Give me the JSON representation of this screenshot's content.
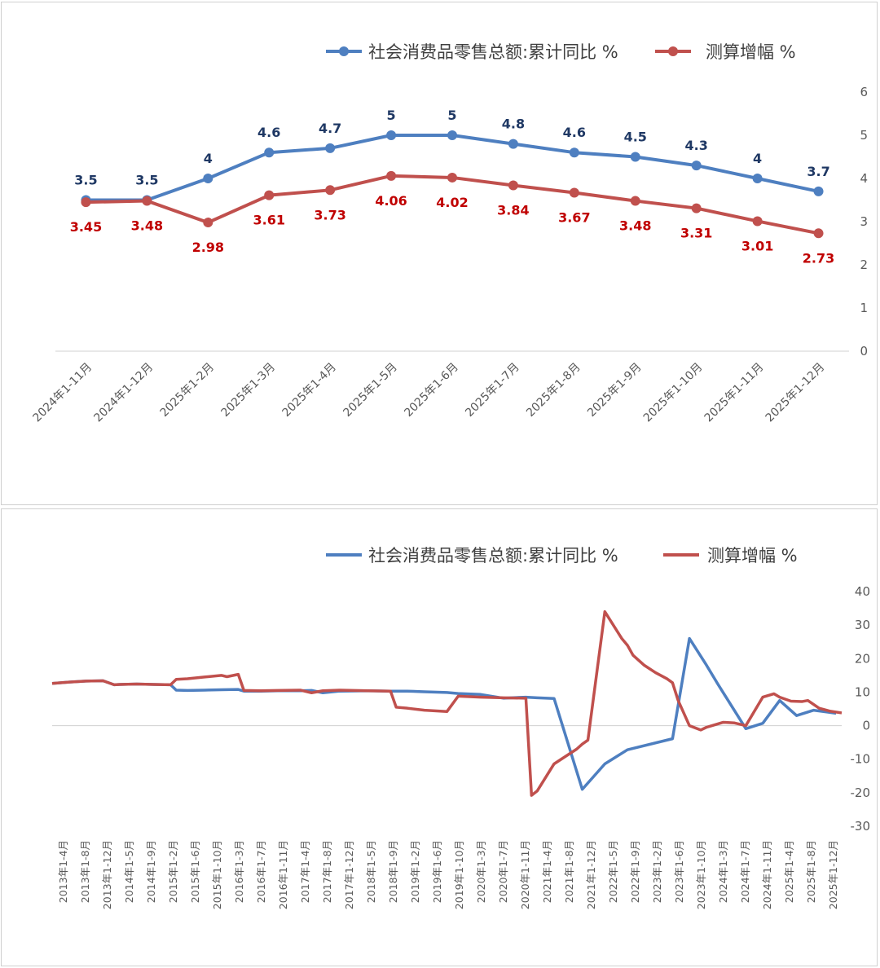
{
  "colors": {
    "blue": "#4e7fc0",
    "red": "#c0504d",
    "blue_label": "#1f3864",
    "red_label": "#c00000"
  },
  "legend": {
    "series1": "社会消费品零售总额:累计同比 %",
    "series2": "测算增幅 %"
  },
  "chart_data": [
    {
      "type": "line",
      "categories": [
        "2024年1-11月",
        "2024年1-12月",
        "2025年1-2月",
        "2025年1-3月",
        "2025年1-4月",
        "2025年1-5月",
        "2025年1-6月",
        "2025年1-7月",
        "2025年1-8月",
        "2025年1-9月",
        "2025年1-10月",
        "2025年1-11月",
        "2025年1-12月"
      ],
      "series": [
        {
          "name": "社会消费品零售总额:累计同比 %",
          "values": [
            3.5,
            3.5,
            4,
            4.6,
            4.7,
            5,
            5,
            4.8,
            4.6,
            4.5,
            4.3,
            4,
            3.7
          ],
          "labels": [
            "3.5",
            "3.5",
            "4",
            "4.6",
            "4.7",
            "5",
            "5",
            "4.8",
            "4.6",
            "4.5",
            "4.3",
            "4",
            "3.7"
          ]
        },
        {
          "name": "测算增幅 %",
          "values": [
            3.45,
            3.48,
            2.98,
            3.61,
            3.73,
            4.06,
            4.02,
            3.84,
            3.67,
            3.48,
            3.31,
            3.01,
            2.73
          ],
          "labels": [
            "3.45",
            "3.48",
            "2.98",
            "3.61",
            "3.73",
            "4.06",
            "4.02",
            "3.84",
            "3.67",
            "3.48",
            "3.31",
            "3.01",
            "2.73"
          ]
        }
      ],
      "ylim": [
        0,
        6
      ],
      "yticks": [
        "0",
        "1",
        "2",
        "3",
        "4",
        "5",
        "6"
      ],
      "legend_position": "top-right",
      "markers": true
    },
    {
      "type": "line",
      "x_tick_labels": [
        "2013年1-4月",
        "2013年1-8月",
        "2013年1-12月",
        "2014年1-5月",
        "2014年1-9月",
        "2015年1-2月",
        "2015年1-6月",
        "2015年1-10月",
        "2016年1-3月",
        "2016年1-7月",
        "2016年1-11月",
        "2017年1-4月",
        "2017年1-8月",
        "2017年1-12月",
        "2018年1-5月",
        "2018年1-9月",
        "2019年1-2月",
        "2019年1-6月",
        "2019年1-10月",
        "2020年1-3月",
        "2020年1-7月",
        "2020年1-11月",
        "2021年1-4月",
        "2021年1-8月",
        "2021年1-12月",
        "2022年1-5月",
        "2022年1-9月",
        "2023年1-2月",
        "2023年1-6月",
        "2023年1-10月",
        "2024年1-3月",
        "2024年1-7月",
        "2024年1-11月",
        "2025年1-4月",
        "2025年1-8月",
        "2025年1-12月"
      ],
      "x_range": [
        0,
        140
      ],
      "series": [
        {
          "name": "社会消费品零售总额:累计同比 %",
          "x": [
            0,
            3,
            6,
            9,
            11,
            12,
            15,
            18,
            21,
            22,
            24,
            27,
            30,
            33,
            34,
            37,
            40,
            44,
            46,
            48,
            51,
            56,
            60,
            63,
            66,
            70,
            72,
            76,
            80,
            84,
            86,
            89,
            94,
            98,
            102,
            110,
            113,
            116,
            118,
            123,
            126,
            129,
            132,
            135,
            139
          ],
          "y": [
            12.6,
            13.0,
            13.3,
            13.4,
            12.2,
            12.3,
            12.4,
            12.3,
            12.2,
            10.6,
            10.5,
            10.6,
            10.7,
            10.8,
            10.3,
            10.3,
            10.4,
            10.4,
            10.5,
            9.8,
            10.3,
            10.4,
            10.3,
            10.3,
            10.1,
            9.9,
            9.6,
            9.3,
            8.2,
            8.5,
            8.3,
            8.1,
            -19.0,
            -11.4,
            -7.2,
            -3.9,
            26.0,
            18.1,
            12.5,
            -0.9,
            0.7,
            7.5,
            3.0,
            4.6,
            3.7
          ]
        },
        {
          "name": "测算增幅 %",
          "x": [
            0,
            3,
            6,
            9,
            11,
            12,
            15,
            18,
            21,
            22,
            24,
            27,
            30,
            31,
            33,
            34,
            37,
            40,
            44,
            46,
            48,
            51,
            56,
            60,
            61,
            63,
            66,
            70,
            72,
            76,
            80,
            84,
            85,
            86,
            89,
            93,
            94,
            95,
            98,
            101,
            102,
            103,
            105,
            107,
            109,
            110,
            111,
            113,
            115,
            116,
            117,
            119,
            121,
            123,
            126,
            128,
            129,
            131,
            133,
            134,
            136,
            138,
            140
          ],
          "y": [
            12.6,
            13.0,
            13.3,
            13.4,
            12.2,
            12.3,
            12.4,
            12.3,
            12.2,
            13.8,
            14.0,
            14.5,
            15.0,
            14.6,
            15.3,
            10.5,
            10.4,
            10.5,
            10.6,
            9.8,
            10.4,
            10.6,
            10.4,
            10.3,
            5.5,
            5.2,
            4.6,
            4.2,
            8.8,
            8.5,
            8.3,
            8.2,
            -20.8,
            -19.5,
            -11.4,
            -7.0,
            -5.5,
            -4.3,
            34.0,
            26.0,
            24.0,
            21.0,
            18.0,
            15.8,
            14.0,
            12.8,
            7.5,
            0.0,
            -1.3,
            -0.5,
            0.0,
            1.0,
            0.8,
            0.0,
            8.5,
            9.5,
            8.5,
            7.3,
            7.2,
            7.5,
            5.2,
            4.3,
            3.8
          ]
        }
      ],
      "ylim": [
        -30,
        40
      ],
      "yticks": [
        "-30",
        "-20",
        "-10",
        "0",
        "10",
        "20",
        "30",
        "40"
      ],
      "legend_position": "top-right",
      "markers": false
    }
  ]
}
